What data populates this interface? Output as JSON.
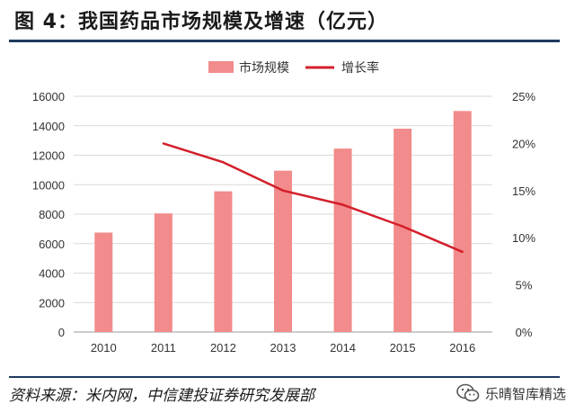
{
  "figure": {
    "title": "图 4：我国药品市场规模及增速（亿元）",
    "source": "资料来源：米内网，中信建投证券研究发展部",
    "watermark": "乐晴智库精选",
    "icon": "wechat-icon"
  },
  "colors": {
    "bar": "#f28b8b",
    "line": "#d41f2b",
    "axis": "#bfbfbf",
    "rule": "#1f3a5f"
  },
  "chart_data": {
    "type": "bar",
    "categories": [
      "2010",
      "2011",
      "2012",
      "2013",
      "2014",
      "2015",
      "2016"
    ],
    "series": [
      {
        "name": "市场规模",
        "type": "bar",
        "axis": "left",
        "values": [
          6750,
          8050,
          9550,
          10950,
          12450,
          13800,
          15000
        ]
      },
      {
        "name": "增长率",
        "type": "line",
        "axis": "right",
        "values": [
          null,
          20,
          18,
          15,
          13.5,
          11.2,
          8.5
        ]
      }
    ],
    "ylim": [
      0,
      16000
    ],
    "yticks": [
      "0",
      "2000",
      "4000",
      "6000",
      "8000",
      "10000",
      "12000",
      "14000",
      "16000"
    ],
    "y2lim": [
      0,
      25
    ],
    "y2ticks": [
      "0%",
      "5%",
      "10%",
      "15%",
      "20%",
      "25%"
    ],
    "legend": "top-center",
    "grid": true
  }
}
